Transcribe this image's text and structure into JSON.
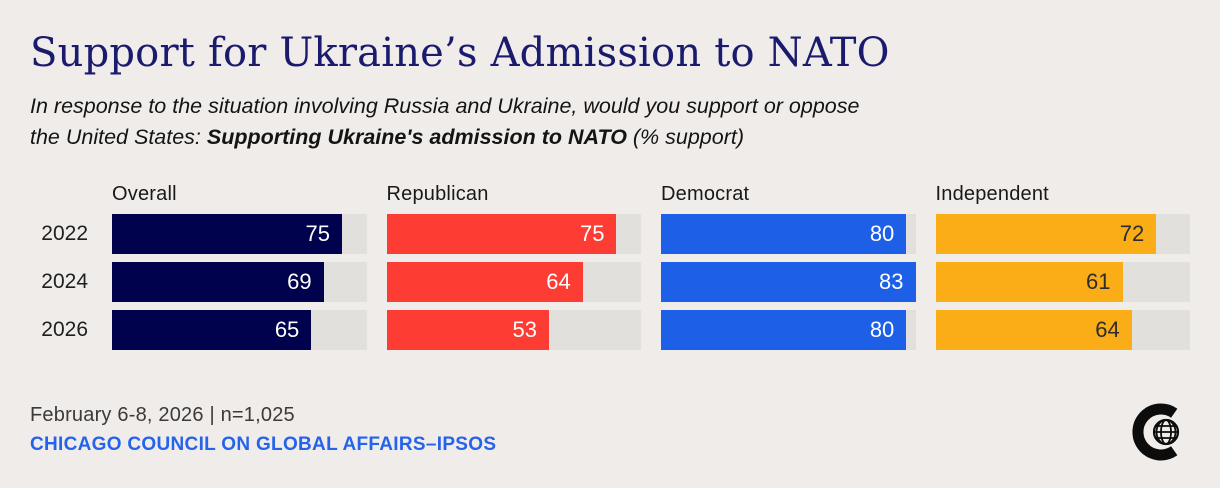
{
  "header": {
    "title": "Support for Ukraine’s Admission to NATO",
    "subtitle_line1": "In response to the situation involving Russia and Ukraine, would you support or oppose",
    "subtitle_line2_prefix": "the United States: ",
    "subtitle_line2_bold": "Supporting Ukraine's admission to NATO",
    "subtitle_line2_suffix": " (% support)"
  },
  "chart_data": {
    "type": "bar",
    "orientation": "horizontal",
    "categories": [
      "2022",
      "2024",
      "2026"
    ],
    "series": [
      {
        "name": "Overall",
        "color": "#00024e",
        "label_color": "#ffffff",
        "values": [
          75,
          69,
          65
        ]
      },
      {
        "name": "Republican",
        "color": "#fd3c34",
        "label_color": "#ffffff",
        "values": [
          75,
          64,
          53
        ]
      },
      {
        "name": "Democrat",
        "color": "#1e5fe8",
        "label_color": "#ffffff",
        "values": [
          80,
          83,
          80
        ]
      },
      {
        "name": "Independent",
        "color": "#fbad18",
        "label_color": "#2d2d2d",
        "values": [
          72,
          61,
          64
        ]
      }
    ],
    "xlim": [
      0,
      83
    ],
    "value_labels": true,
    "track_color": "#e2e0dd",
    "grid": false,
    "legend_position": "column-headers",
    "title": "Support for Ukraine’s Admission to NATO"
  },
  "footer": {
    "date_note": "February 6-8, 2026 | n=1,025",
    "source": "CHICAGO COUNCIL ON GLOBAL AFFAIRS–IPSOS",
    "logo": "chicago-council-globe-logo"
  },
  "colors": {
    "background": "#efecea",
    "title_navy": "#1b1b6e",
    "source_blue": "#2563eb",
    "track_gray": "#e2e0dd",
    "text_dark": "#1a1a1a"
  }
}
